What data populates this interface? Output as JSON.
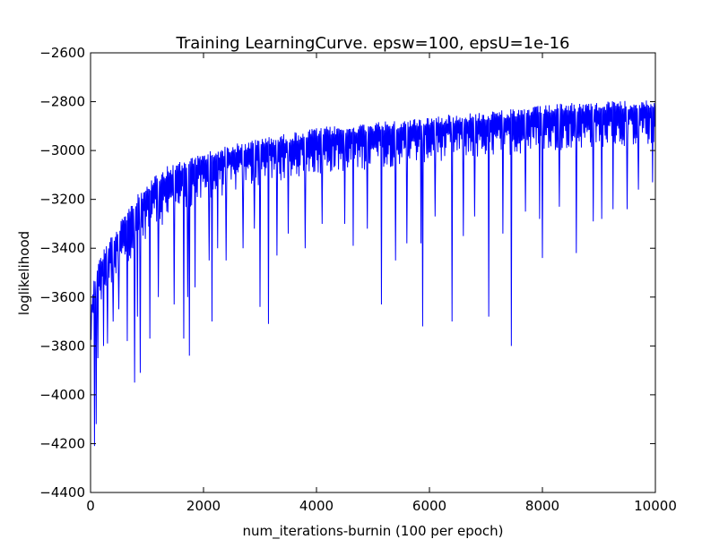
{
  "chart_data": {
    "type": "line",
    "title": "Training LearningCurve. epsw=100, epsU=1e-16",
    "xlabel": "num_iterations-burnin (100 per epoch)",
    "ylabel": "loglikelihood",
    "xlim": [
      0,
      10000
    ],
    "ylim": [
      -4400,
      -2600
    ],
    "xticks": [
      0,
      2000,
      4000,
      6000,
      8000,
      10000
    ],
    "yticks": [
      -4400,
      -4200,
      -4000,
      -3800,
      -3600,
      -3400,
      -3200,
      -3000,
      -2800,
      -2600
    ],
    "xtick_labels": [
      "0",
      "2000",
      "4000",
      "6000",
      "8000",
      "10000"
    ],
    "ytick_labels": [
      "−4400",
      "−4200",
      "−4000",
      "−3800",
      "−3600",
      "−3400",
      "−3200",
      "−3000",
      "−2800",
      "−2600"
    ],
    "grid": false,
    "legend": "none",
    "series": [
      {
        "color": "#0000ff",
        "upper_envelope": [
          [
            0,
            -3650
          ],
          [
            50,
            -3540
          ],
          [
            100,
            -3470
          ],
          [
            200,
            -3420
          ],
          [
            300,
            -3370
          ],
          [
            500,
            -3300
          ],
          [
            700,
            -3220
          ],
          [
            1000,
            -3130
          ],
          [
            1300,
            -3070
          ],
          [
            1600,
            -3040
          ],
          [
            2000,
            -3010
          ],
          [
            2500,
            -2975
          ],
          [
            3000,
            -2950
          ],
          [
            3500,
            -2930
          ],
          [
            4000,
            -2905
          ],
          [
            4500,
            -2895
          ],
          [
            5000,
            -2885
          ],
          [
            5500,
            -2875
          ],
          [
            6000,
            -2860
          ],
          [
            6500,
            -2850
          ],
          [
            7000,
            -2840
          ],
          [
            7500,
            -2830
          ],
          [
            8000,
            -2815
          ],
          [
            8500,
            -2805
          ],
          [
            9000,
            -2800
          ],
          [
            9500,
            -2795
          ],
          [
            10000,
            -2785
          ]
        ],
        "lower_typical": [
          [
            0,
            -3880
          ],
          [
            100,
            -3760
          ],
          [
            200,
            -3700
          ],
          [
            400,
            -3620
          ],
          [
            700,
            -3520
          ],
          [
            1000,
            -3430
          ],
          [
            1500,
            -3340
          ],
          [
            2000,
            -3290
          ],
          [
            2500,
            -3240
          ],
          [
            3000,
            -3210
          ],
          [
            4000,
            -3160
          ],
          [
            5000,
            -3140
          ],
          [
            6000,
            -3110
          ],
          [
            7000,
            -3090
          ],
          [
            8000,
            -3070
          ],
          [
            9000,
            -3050
          ],
          [
            10000,
            -3040
          ]
        ],
        "spikes": [
          [
            70,
            -4210
          ],
          [
            100,
            -4120
          ],
          [
            130,
            -3850
          ],
          [
            230,
            -3800
          ],
          [
            300,
            -3790
          ],
          [
            400,
            -3700
          ],
          [
            500,
            -3650
          ],
          [
            650,
            -3780
          ],
          [
            780,
            -3950
          ],
          [
            830,
            -3680
          ],
          [
            880,
            -3910
          ],
          [
            1050,
            -3770
          ],
          [
            1200,
            -3600
          ],
          [
            1480,
            -3630
          ],
          [
            1650,
            -3770
          ],
          [
            1720,
            -3600
          ],
          [
            1750,
            -3840
          ],
          [
            1850,
            -3560
          ],
          [
            2100,
            -3450
          ],
          [
            2150,
            -3700
          ],
          [
            2250,
            -3400
          ],
          [
            2400,
            -3450
          ],
          [
            2700,
            -3400
          ],
          [
            2900,
            -3320
          ],
          [
            3000,
            -3640
          ],
          [
            3150,
            -3710
          ],
          [
            3300,
            -3430
          ],
          [
            3500,
            -3340
          ],
          [
            3800,
            -3400
          ],
          [
            4100,
            -3300
          ],
          [
            4500,
            -3300
          ],
          [
            4650,
            -3390
          ],
          [
            4900,
            -3320
          ],
          [
            5150,
            -3630
          ],
          [
            5400,
            -3450
          ],
          [
            5600,
            -3380
          ],
          [
            5850,
            -3380
          ],
          [
            5880,
            -3720
          ],
          [
            6100,
            -3270
          ],
          [
            6400,
            -3700
          ],
          [
            6600,
            -3350
          ],
          [
            6800,
            -3270
          ],
          [
            7050,
            -3680
          ],
          [
            7300,
            -3340
          ],
          [
            7450,
            -3800
          ],
          [
            7700,
            -3250
          ],
          [
            7950,
            -3280
          ],
          [
            8000,
            -3440
          ],
          [
            8300,
            -3230
          ],
          [
            8600,
            -3420
          ],
          [
            8900,
            -3290
          ],
          [
            9050,
            -3280
          ],
          [
            9250,
            -3240
          ],
          [
            9500,
            -3240
          ],
          [
            9700,
            -3160
          ],
          [
            9950,
            -3130
          ]
        ]
      }
    ]
  }
}
